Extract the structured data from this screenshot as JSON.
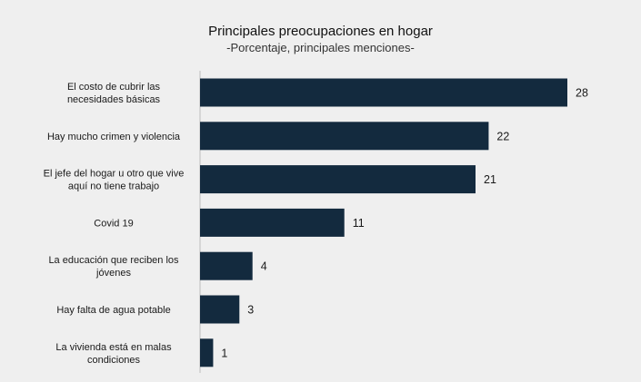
{
  "chart_data": {
    "type": "bar",
    "orientation": "horizontal",
    "title": "Principales preocupaciones en hogar",
    "subtitle": "-Porcentaje, principales menciones-",
    "categories": [
      [
        "El costo de cubrir las",
        "necesidades básicas"
      ],
      [
        "Hay mucho crimen y violencia"
      ],
      [
        "El jefe del hogar u otro que vive",
        "aquí no tiene trabajo"
      ],
      [
        "Covid 19"
      ],
      [
        "La educación que reciben los",
        "jóvenes"
      ],
      [
        "Hay falta de agua potable"
      ],
      [
        "La vivienda está en malas",
        "condiciones"
      ]
    ],
    "values": [
      28,
      22,
      21,
      11,
      4,
      3,
      1
    ],
    "bar_color": "#132a3e",
    "xlabel": "",
    "ylabel": "",
    "xlim": [
      0,
      28
    ],
    "grid": false,
    "legend": "none"
  }
}
